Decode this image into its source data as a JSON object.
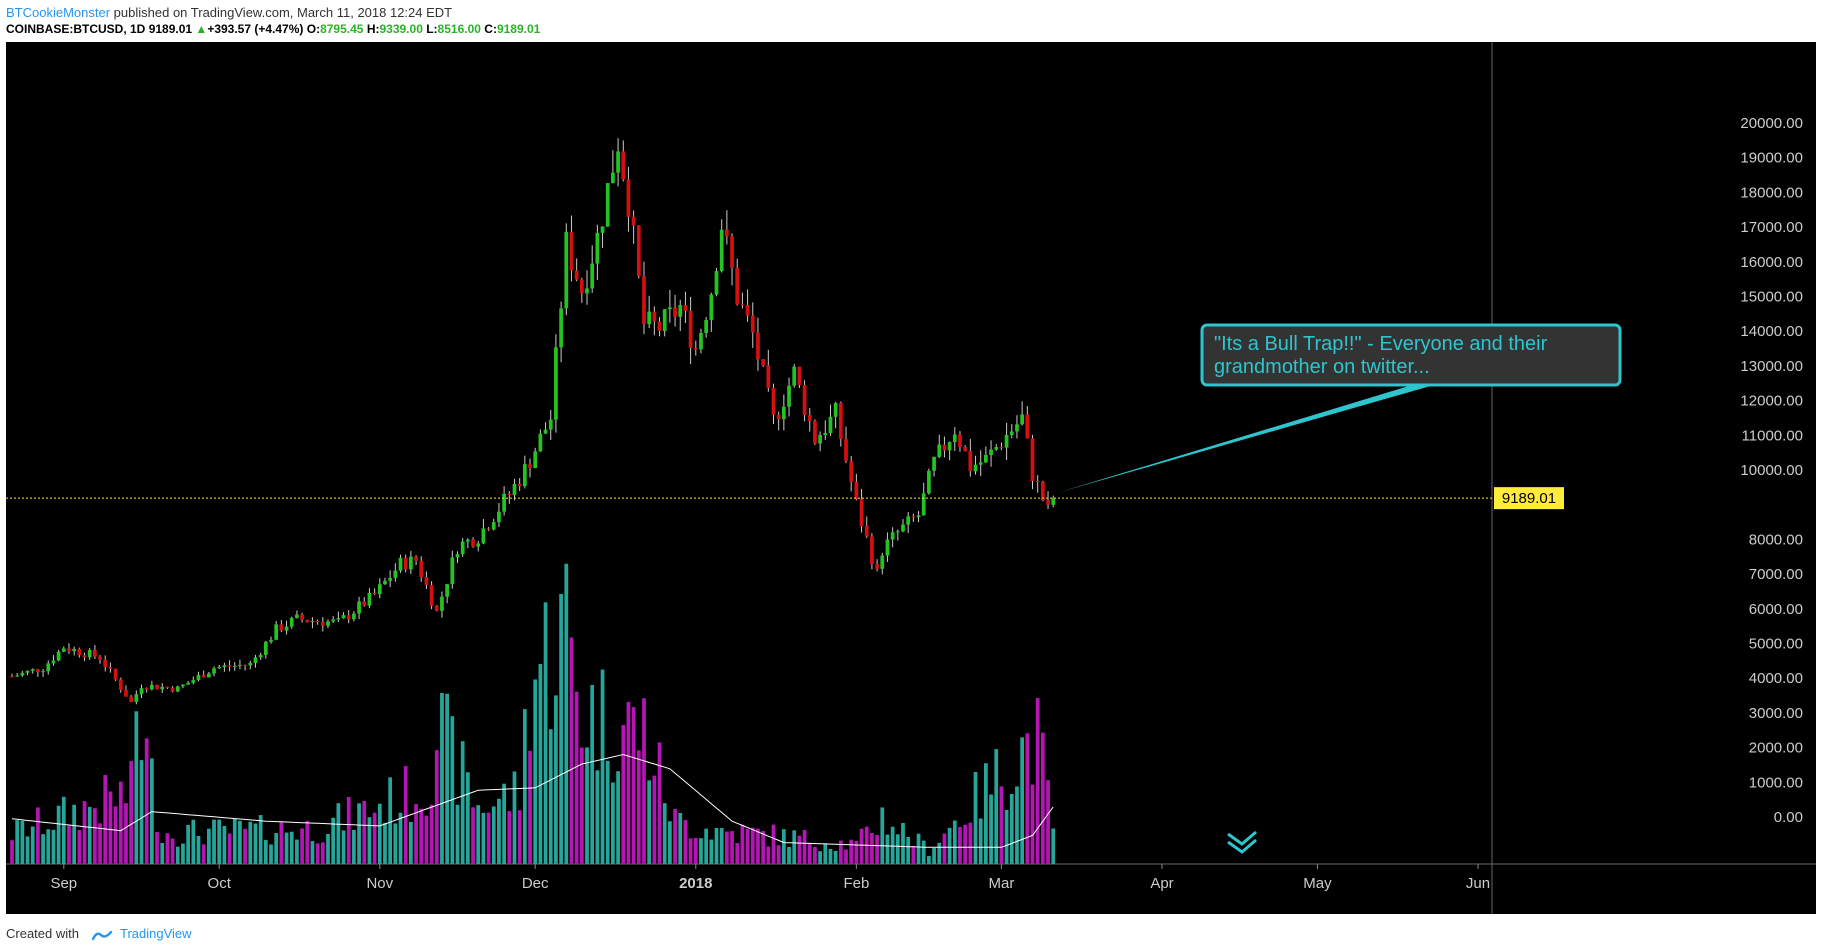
{
  "header": {
    "author": "BTCookieMonster",
    "published_text": "published on TradingView.com, March 11, 2018 12:24 EDT",
    "symbol": "COINBASE:BTCUSD, 1D",
    "last": "9189.01",
    "change": "+393.57 (+4.47%)",
    "open_label": "O:",
    "open": "8795.45",
    "high_label": "H:",
    "high": "9339.00",
    "low_label": "L:",
    "low": "8516.00",
    "close_label": "C:",
    "close": "9189.01"
  },
  "footer": {
    "created_with": "Created with",
    "brand": "TradingView"
  },
  "colors": {
    "background": "#000000",
    "up_candle": "#22c322",
    "down_candle": "#d40f0f",
    "wick": "#cccccc",
    "volume_up": "#26a69a",
    "volume_down": "#b316b3",
    "volume_ma": "#ffffff",
    "price_line": "#ffeb3b",
    "callout": "#2ec5ce"
  },
  "chart_data": {
    "type": "candlestick",
    "x_tick_labels": [
      "Sep",
      "Oct",
      "Nov",
      "Dec",
      "2018",
      "Feb",
      "Mar",
      "Apr",
      "May",
      "Jun"
    ],
    "x_tick_dates": [
      "2017-09-01",
      "2017-10-01",
      "2017-11-01",
      "2017-12-01",
      "2018-01-01",
      "2018-02-01",
      "2018-03-01",
      "2018-04-01",
      "2018-05-01",
      "2018-06-01"
    ],
    "x_range": [
      "2017-08-22",
      "2018-06-01"
    ],
    "y_tick_labels": [
      "20000.00",
      "19000.00",
      "18000.00",
      "17000.00",
      "16000.00",
      "15000.00",
      "14000.00",
      "13000.00",
      "12000.00",
      "11000.00",
      "10000.00",
      "8000.00",
      "7000.00",
      "6000.00",
      "5000.00",
      "4000.00",
      "3000.00",
      "2000.00",
      "1000.00",
      "0.00"
    ],
    "y_range": [
      0,
      20800
    ],
    "last_price": 9189.01,
    "last_price_label": "9189.01",
    "price_anchors": [
      [
        "2017-08-22",
        4050
      ],
      [
        "2017-08-28",
        4300
      ],
      [
        "2017-09-01",
        4900
      ],
      [
        "2017-09-08",
        4600
      ],
      [
        "2017-09-14",
        3300
      ],
      [
        "2017-09-16",
        3800
      ],
      [
        "2017-09-23",
        3700
      ],
      [
        "2017-09-30",
        4300
      ],
      [
        "2017-10-07",
        4400
      ],
      [
        "2017-10-12",
        5400
      ],
      [
        "2017-10-16",
        5700
      ],
      [
        "2017-10-24",
        5600
      ],
      [
        "2017-10-31",
        6400
      ],
      [
        "2017-11-05",
        7300
      ],
      [
        "2017-11-08",
        7400
      ],
      [
        "2017-11-12",
        5900
      ],
      [
        "2017-11-16",
        7800
      ],
      [
        "2017-11-20",
        8100
      ],
      [
        "2017-11-26",
        9300
      ],
      [
        "2017-11-29",
        10000
      ],
      [
        "2017-12-04",
        11500
      ],
      [
        "2017-12-07",
        16500
      ],
      [
        "2017-12-10",
        15200
      ],
      [
        "2017-12-13",
        16700
      ],
      [
        "2017-12-17",
        19500
      ],
      [
        "2017-12-19",
        17800
      ],
      [
        "2017-12-22",
        14200
      ],
      [
        "2017-12-25",
        14100
      ],
      [
        "2017-12-29",
        14700
      ],
      [
        "2018-01-01",
        13500
      ],
      [
        "2018-01-04",
        15200
      ],
      [
        "2018-01-06",
        17100
      ],
      [
        "2018-01-09",
        15000
      ],
      [
        "2018-01-12",
        13900
      ],
      [
        "2018-01-16",
        11400
      ],
      [
        "2018-01-20",
        12800
      ],
      [
        "2018-01-24",
        10900
      ],
      [
        "2018-01-28",
        11600
      ],
      [
        "2018-02-01",
        9000
      ],
      [
        "2018-02-05",
        7000
      ],
      [
        "2018-02-06",
        7700
      ],
      [
        "2018-02-09",
        8200
      ],
      [
        "2018-02-13",
        8700
      ],
      [
        "2018-02-16",
        10200
      ],
      [
        "2018-02-20",
        11200
      ],
      [
        "2018-02-23",
        10100
      ],
      [
        "2018-02-26",
        10300
      ],
      [
        "2018-03-02",
        11000
      ],
      [
        "2018-03-05",
        11500
      ],
      [
        "2018-03-07",
        9900
      ],
      [
        "2018-03-10",
        8800
      ],
      [
        "2018-03-11",
        9189
      ]
    ],
    "volume_anchors": [
      [
        "2017-08-22",
        650
      ],
      [
        "2017-09-14",
        1500
      ],
      [
        "2017-09-15",
        3300
      ],
      [
        "2017-09-20",
        650
      ],
      [
        "2017-10-20",
        750
      ],
      [
        "2017-11-10",
        1600
      ],
      [
        "2017-11-12",
        2900
      ],
      [
        "2017-11-20",
        1200
      ],
      [
        "2017-11-28",
        1500
      ],
      [
        "2017-11-30",
        3900
      ],
      [
        "2017-12-07",
        5000
      ],
      [
        "2017-12-10",
        3200
      ],
      [
        "2017-12-22",
        2800
      ],
      [
        "2017-12-28",
        900
      ],
      [
        "2018-01-05",
        700
      ],
      [
        "2018-01-16",
        600
      ],
      [
        "2018-02-01",
        400
      ],
      [
        "2018-02-06",
        1000
      ],
      [
        "2018-02-15",
        300
      ],
      [
        "2018-03-06",
        2500
      ],
      [
        "2018-03-08",
        2600
      ],
      [
        "2018-03-11",
        800
      ]
    ],
    "volume_ma_anchors": [
      [
        "2017-08-22",
        950
      ],
      [
        "2017-09-12",
        700
      ],
      [
        "2017-09-18",
        1100
      ],
      [
        "2017-10-10",
        900
      ],
      [
        "2017-11-01",
        800
      ],
      [
        "2017-11-20",
        1550
      ],
      [
        "2017-12-01",
        1600
      ],
      [
        "2017-12-10",
        2100
      ],
      [
        "2017-12-18",
        2300
      ],
      [
        "2017-12-27",
        2000
      ],
      [
        "2018-01-08",
        900
      ],
      [
        "2018-01-18",
        450
      ],
      [
        "2018-02-15",
        350
      ],
      [
        "2018-03-01",
        350
      ],
      [
        "2018-03-07",
        600
      ],
      [
        "2018-03-11",
        1200
      ]
    ],
    "callout": {
      "text_line1": "\"Its a Bull Trap!!\" - Everyone and their",
      "text_line2": "grandmother on twitter...",
      "target_date": "2018-03-12",
      "target_price": 9350
    }
  }
}
